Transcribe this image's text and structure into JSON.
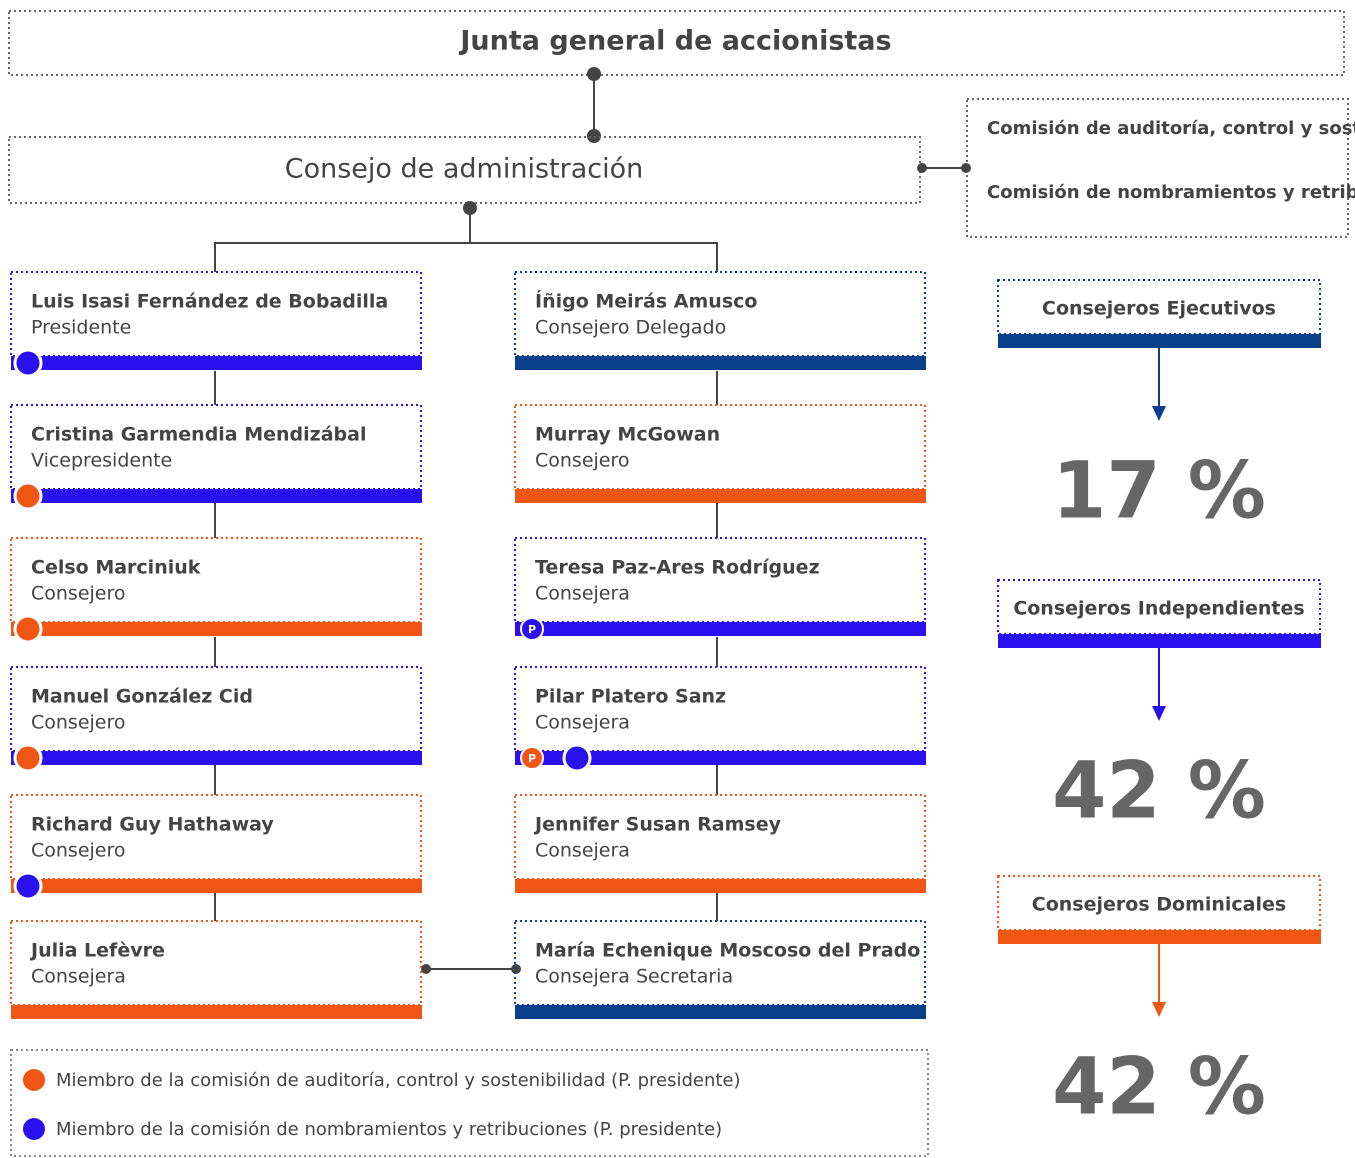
{
  "header": {
    "title": "Junta general de accionistas"
  },
  "board": {
    "title": "Consejo de administración"
  },
  "committees": [
    "Comisión de auditoría, control y sostenibilidad",
    "Comisión de nombramientos y retribuciones"
  ],
  "chair_label": "P",
  "columns": [
    [
      {
        "name": "Luis Isasi Fernández de Bobadilla",
        "role": "Presidente",
        "color": "#2a10ee",
        "marks": [
          {
            "color": "#2a10ee",
            "chair": false
          }
        ]
      },
      {
        "name": "Cristina Garmendia Mendizábal",
        "role": "Vicepresidente",
        "color": "#2a10ee",
        "marks": [
          {
            "color": "#ef5614",
            "chair": false
          }
        ]
      },
      {
        "name": "Celso Marciniuk",
        "role": "Consejero",
        "color": "#ef5614",
        "marks": [
          {
            "color": "#ef5614",
            "chair": false
          }
        ]
      },
      {
        "name": "Manuel González Cid",
        "role": "Consejero",
        "color": "#2a10ee",
        "marks": [
          {
            "color": "#ef5614",
            "chair": false
          }
        ]
      },
      {
        "name": "Richard Guy Hathaway",
        "role": "Consejero",
        "color": "#ef5614",
        "marks": [
          {
            "color": "#2a10ee",
            "chair": false
          }
        ]
      },
      {
        "name": "Julia Lefèvre",
        "role": "Consejera",
        "color": "#ef5614",
        "marks": []
      }
    ],
    [
      {
        "name": "Íñigo Meirás Amusco",
        "role": "Consejero Delegado",
        "color": "#0a3f8c",
        "marks": []
      },
      {
        "name": "Murray McGowan",
        "role": "Consejero",
        "color": "#ef5614",
        "marks": []
      },
      {
        "name": "Teresa Paz-Ares Rodríguez",
        "role": "Consejera",
        "color": "#2a10ee",
        "marks": [
          {
            "color": "#2a10ee",
            "chair": true
          }
        ]
      },
      {
        "name": "Pilar Platero Sanz",
        "role": "Consejera",
        "color": "#2a10ee",
        "marks": [
          {
            "color": "#ef5614",
            "chair": true
          },
          {
            "color": "#2a10ee",
            "chair": false
          }
        ]
      },
      {
        "name": "Jennifer Susan Ramsey",
        "role": "Consejera",
        "color": "#ef5614",
        "marks": []
      },
      {
        "name": "María Echenique Moscoso del Prado",
        "role": "Consejera Secretaria",
        "color": "#0a3f8c",
        "marks": []
      }
    ]
  ],
  "categories": [
    {
      "label": "Consejeros Ejecutivos",
      "value": "17 %",
      "color": "#0a3f8c"
    },
    {
      "label": "Consejeros Independientes",
      "value": "42 %",
      "color": "#2a10ee"
    },
    {
      "label": "Consejeros Dominicales",
      "value": "42 %",
      "color": "#ef5614"
    }
  ],
  "legend": [
    {
      "label": "Miembro de la comisión de auditoría, control y sostenibilidad (P. presidente)",
      "color": "#ef5614"
    },
    {
      "label": "Miembro de la comisión de nombramientos y retribuciones (P. presidente)",
      "color": "#2a10ee"
    }
  ]
}
